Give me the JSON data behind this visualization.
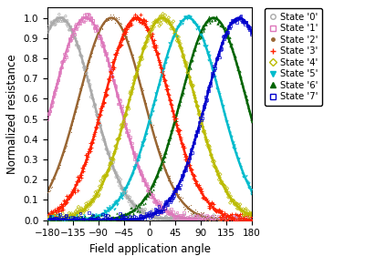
{
  "states": [
    {
      "label": "State '0'",
      "peak": -157.5,
      "color": "#aaaaaa",
      "marker": "o"
    },
    {
      "label": "State '1'",
      "peak": -112.5,
      "color": "#dd77bb",
      "marker": "s"
    },
    {
      "label": "State '2'",
      "peak": -67.5,
      "color": "#996633",
      "marker": "."
    },
    {
      "label": "State '3'",
      "peak": -22.5,
      "color": "#ff2200",
      "marker": "+"
    },
    {
      "label": "State '4'",
      "peak": 22.5,
      "color": "#bbbb00",
      "marker": "D"
    },
    {
      "label": "State '5'",
      "peak": 67.5,
      "color": "#00bbcc",
      "marker": "v"
    },
    {
      "label": "State '6'",
      "peak": 112.5,
      "color": "#006400",
      "marker": "^"
    },
    {
      "label": "State '7'",
      "peak": 157.5,
      "color": "#0000cc",
      "marker": "s"
    }
  ],
  "sigma": 57,
  "xlabel": "Field application angle",
  "ylabel": "Normalized resistance",
  "xlim": [
    -180,
    180
  ],
  "ylim": [
    0,
    1.05
  ],
  "xticks": [
    -180,
    -135,
    -90,
    -45,
    0,
    45,
    90,
    135,
    180
  ],
  "yticks": [
    0,
    0.1,
    0.2,
    0.3,
    0.4,
    0.5,
    0.6,
    0.7,
    0.8,
    0.9,
    1
  ],
  "figsize": [
    4.0,
    2.81
  ],
  "dpi": 100,
  "legend_marker_colors": [
    "#aaaaaa",
    "#dd77bb",
    "#996633",
    "#ff2200",
    "#bbbb00",
    "#00bbcc",
    "#006400",
    "#0000cc"
  ]
}
